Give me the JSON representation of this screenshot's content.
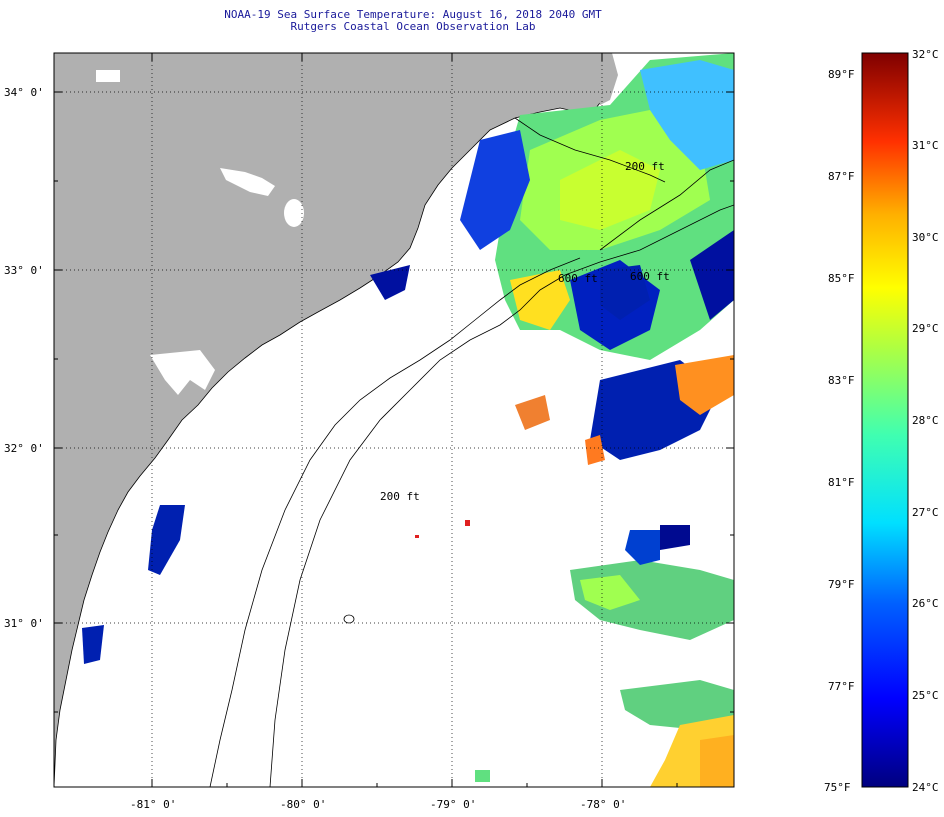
{
  "title": {
    "line1": "NOAA-19 Sea Surface Temperature:  August 16, 2018 2040 GMT",
    "line2": "Rutgers Coastal Ocean Observation Lab"
  },
  "map": {
    "lat_labels": [
      "34° 0'",
      "33° 0'",
      "32° 0'",
      "31° 0'"
    ],
    "lon_labels": [
      "-81° 0'",
      "-80° 0'",
      "-79° 0'",
      "-78° 0'"
    ],
    "isobath_labels": [
      "200 ft",
      "600 ft",
      "600 ft",
      "200 ft"
    ],
    "colors": {
      "land": "#b0b0b0",
      "cloud": "#ffffff",
      "coast": "#000000"
    }
  },
  "colorbar": {
    "f_labels": [
      "89°F",
      "87°F",
      "85°F",
      "83°F",
      "81°F",
      "79°F",
      "77°F",
      "75°F"
    ],
    "c_labels": [
      "32°C",
      "31°C",
      "30°C",
      "29°C",
      "28°C",
      "27°C",
      "26°C",
      "25°C",
      "24°C"
    ]
  }
}
